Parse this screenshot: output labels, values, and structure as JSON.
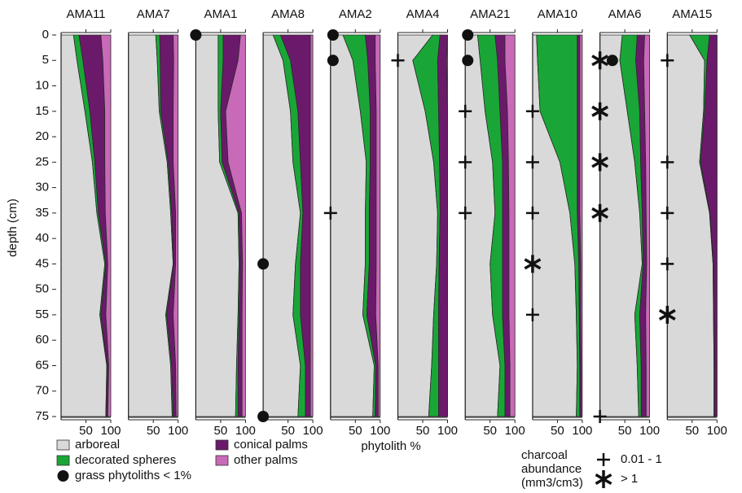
{
  "chart_data": {
    "type": "stacked_area",
    "y_label": "depth (cm)",
    "x_label": "phytolith %",
    "ylim": [
      0,
      75
    ],
    "yticks": [
      0,
      5,
      10,
      15,
      20,
      25,
      30,
      35,
      40,
      45,
      50,
      55,
      60,
      65,
      70,
      75
    ],
    "xlim": [
      0,
      100
    ],
    "xticks": [
      50,
      100
    ],
    "depths": [
      0,
      5,
      15,
      25,
      35,
      45,
      55,
      65,
      75
    ],
    "series": [
      {
        "name": "arboreal",
        "color": "#d9d9d9"
      },
      {
        "name": "decorated spheres",
        "color": "#1aa637"
      },
      {
        "name": "conical palms",
        "color": "#6b1a6b"
      },
      {
        "name": "other palms",
        "color": "#c86ab8"
      }
    ],
    "legend": {
      "grass": "grass phytoliths < 1%",
      "charcoal_title": [
        "charcoal",
        "abundance",
        "(mm3/cm3)"
      ],
      "low": "0.01 - 1",
      "high": "> 1"
    },
    "panels": [
      {
        "title": "AMA11",
        "values": [
          [
            25,
            32,
            48,
            63,
            72,
            88,
            78,
            92,
            90
          ],
          [
            11,
            12,
            10,
            5,
            3,
            2,
            2,
            1,
            1
          ],
          [
            44,
            40,
            30,
            20,
            14,
            4,
            10,
            3,
            3
          ],
          [
            20,
            16,
            12,
            12,
            11,
            6,
            10,
            4,
            6
          ]
        ],
        "grass": [],
        "charcoal_low": [],
        "charcoal_high": []
      },
      {
        "title": "AMA7",
        "values": [
          [
            55,
            58,
            62,
            78,
            85,
            90,
            75,
            85,
            88
          ],
          [
            8,
            6,
            3,
            2,
            2,
            1,
            2,
            2,
            2
          ],
          [
            27,
            27,
            25,
            10,
            8,
            4,
            13,
            8,
            6
          ],
          [
            10,
            9,
            10,
            10,
            5,
            5,
            10,
            5,
            4
          ]
        ],
        "grass": [],
        "charcoal_low": [],
        "charcoal_high": []
      },
      {
        "title": "AMA1",
        "values": [
          [
            45,
            45,
            45,
            48,
            85,
            87,
            85,
            82,
            80
          ],
          [
            10,
            10,
            5,
            5,
            2,
            2,
            2,
            3,
            5
          ],
          [
            35,
            30,
            10,
            12,
            5,
            5,
            6,
            8,
            8
          ],
          [
            10,
            15,
            40,
            35,
            8,
            6,
            7,
            7,
            7
          ]
        ],
        "grass": [
          {
            "depth": 0,
            "x": 0
          }
        ],
        "charcoal_low": [],
        "charcoal_high": []
      },
      {
        "title": "AMA8",
        "values": [
          [
            20,
            40,
            55,
            60,
            75,
            65,
            60,
            75,
            70
          ],
          [
            15,
            15,
            15,
            15,
            5,
            10,
            15,
            10,
            15
          ],
          [
            60,
            40,
            25,
            20,
            15,
            20,
            20,
            10,
            10
          ],
          [
            5,
            5,
            5,
            5,
            5,
            5,
            5,
            5,
            5
          ]
        ],
        "grass": [
          {
            "depth": 45,
            "x": 0
          },
          {
            "depth": 75,
            "x": 0
          }
        ],
        "charcoal_low": [],
        "charcoal_high": []
      },
      {
        "title": "AMA2",
        "values": [
          [
            25,
            45,
            60,
            72,
            70,
            70,
            65,
            88,
            85
          ],
          [
            45,
            30,
            20,
            8,
            8,
            8,
            8,
            3,
            5
          ],
          [
            20,
            15,
            12,
            12,
            14,
            14,
            18,
            5,
            6
          ],
          [
            10,
            10,
            8,
            8,
            8,
            8,
            9,
            4,
            4
          ]
        ],
        "grass": [
          {
            "depth": 0,
            "x": 5
          },
          {
            "depth": 5,
            "x": 5
          }
        ],
        "charcoal_low": [
          35
        ],
        "charcoal_high": []
      },
      {
        "title": "AMA4",
        "values": [
          [
            70,
            30,
            55,
            72,
            80,
            78,
            72,
            68,
            62
          ],
          [
            15,
            50,
            27,
            12,
            5,
            5,
            10,
            14,
            20
          ],
          [
            15,
            18,
            18,
            16,
            15,
            17,
            18,
            18,
            18
          ],
          [
            0,
            2,
            0,
            0,
            0,
            0,
            0,
            0,
            0
          ]
        ],
        "grass": [],
        "charcoal_low": [
          5
        ],
        "charcoal_high": []
      },
      {
        "title": "AMA21",
        "values": [
          [
            25,
            30,
            40,
            55,
            60,
            50,
            55,
            70,
            65
          ],
          [
            35,
            35,
            30,
            20,
            15,
            25,
            20,
            10,
            15
          ],
          [
            20,
            15,
            15,
            12,
            13,
            13,
            13,
            10,
            10
          ],
          [
            20,
            20,
            15,
            13,
            12,
            12,
            12,
            10,
            10
          ]
        ],
        "grass": [
          {
            "depth": 0,
            "x": 5
          },
          {
            "depth": 5,
            "x": 5
          }
        ],
        "charcoal_low": [
          15,
          25,
          35
        ],
        "charcoal_high": []
      },
      {
        "title": "AMA10",
        "values": [
          [
            8,
            10,
            15,
            55,
            75,
            85,
            88,
            90,
            88
          ],
          [
            82,
            80,
            75,
            35,
            15,
            8,
            6,
            5,
            7
          ],
          [
            5,
            5,
            5,
            5,
            5,
            4,
            3,
            3,
            3
          ],
          [
            5,
            5,
            5,
            5,
            5,
            3,
            3,
            2,
            2
          ]
        ],
        "grass": [],
        "charcoal_low": [
          15,
          25,
          35,
          55
        ],
        "charcoal_high": [
          45
        ]
      },
      {
        "title": "AMA6",
        "values": [
          [
            45,
            40,
            55,
            70,
            80,
            85,
            70,
            75,
            78
          ],
          [
            30,
            32,
            25,
            12,
            5,
            2,
            10,
            8,
            5
          ],
          [
            15,
            16,
            10,
            10,
            8,
            7,
            12,
            10,
            10
          ],
          [
            10,
            12,
            10,
            8,
            7,
            6,
            8,
            7,
            7
          ]
        ],
        "grass": [
          {
            "depth": 5,
            "x": 25
          }
        ],
        "charcoal_low": [
          75
        ],
        "charcoal_high": [
          5,
          15,
          25,
          35
        ]
      },
      {
        "title": "AMA15",
        "values": [
          [
            45,
            75,
            73,
            65,
            85,
            92,
            93,
            94,
            94
          ],
          [
            40,
            5,
            2,
            2,
            1,
            1,
            1,
            1,
            1
          ],
          [
            15,
            20,
            25,
            33,
            14,
            7,
            6,
            5,
            5
          ],
          [
            0,
            0,
            0,
            0,
            0,
            0,
            0,
            0,
            0
          ]
        ],
        "grass": [],
        "charcoal_low": [
          5,
          25,
          35,
          45
        ],
        "charcoal_high": [
          55
        ]
      }
    ]
  }
}
